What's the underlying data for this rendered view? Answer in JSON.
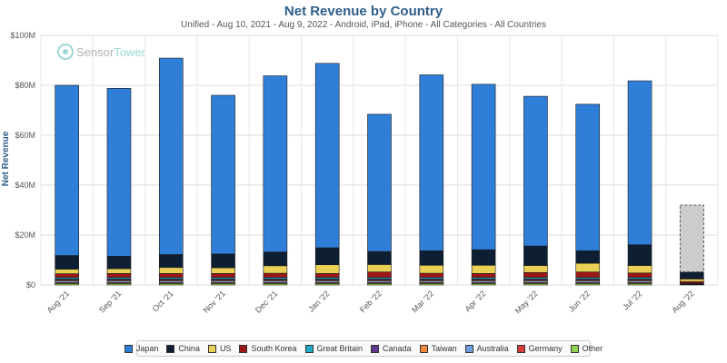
{
  "chart_data": {
    "type": "bar",
    "stacked": true,
    "title": "Net Revenue by Country",
    "subtitle": "Unified - Aug 10, 2021 - Aug 9, 2022 - Android, iPad, iPhone - All Categories - All Countries",
    "ylabel": "Net Revenue",
    "xlabel": "",
    "ylim": [
      0,
      100
    ],
    "yticks": [
      {
        "value": 0,
        "label": "$0"
      },
      {
        "value": 20,
        "label": "$20M"
      },
      {
        "value": 40,
        "label": "$40M"
      },
      {
        "value": 60,
        "label": "$60M"
      },
      {
        "value": 80,
        "label": "$80M"
      },
      {
        "value": 100,
        "label": "$100M"
      }
    ],
    "grid": true,
    "legend_position": "bottom",
    "categories": [
      "Aug '21",
      "Sep '21",
      "Oct '21",
      "Nov '21",
      "Dec '21",
      "Jan '22",
      "Feb '22",
      "Mar '22",
      "Apr '22",
      "May '22",
      "Jun '22",
      "Jul '22",
      "Aug '22"
    ],
    "series": [
      {
        "name": "Other",
        "color": "#8fd14f",
        "values": [
          0.6,
          0.6,
          0.6,
          0.6,
          0.6,
          0.6,
          0.6,
          0.6,
          0.6,
          0.6,
          0.6,
          0.6,
          0.2
        ]
      },
      {
        "name": "Germany",
        "color": "#d63a3a",
        "values": [
          0.4,
          0.4,
          0.4,
          0.4,
          0.4,
          0.4,
          0.4,
          0.4,
          0.4,
          0.4,
          0.4,
          0.4,
          0.1
        ]
      },
      {
        "name": "Australia",
        "color": "#6f9ee0",
        "values": [
          0.6,
          0.6,
          0.6,
          0.6,
          0.6,
          0.6,
          0.6,
          0.6,
          0.6,
          0.6,
          0.6,
          0.6,
          0.1
        ]
      },
      {
        "name": "Taiwan",
        "color": "#f0883a",
        "values": [
          0.4,
          0.4,
          0.4,
          0.4,
          0.4,
          0.4,
          0.4,
          0.4,
          0.4,
          0.4,
          0.4,
          0.4,
          0.1
        ]
      },
      {
        "name": "Canada",
        "color": "#5e3a8c",
        "values": [
          0.4,
          0.4,
          0.4,
          0.4,
          0.4,
          0.4,
          0.4,
          0.4,
          0.4,
          0.4,
          0.4,
          0.4,
          0.1
        ]
      },
      {
        "name": "Great Britain",
        "color": "#1fa9c9",
        "values": [
          0.6,
          0.6,
          0.6,
          0.6,
          0.6,
          0.6,
          0.6,
          0.6,
          0.6,
          0.6,
          0.6,
          0.6,
          0.1
        ]
      },
      {
        "name": "South Korea",
        "color": "#9c1717",
        "values": [
          1.5,
          1.6,
          1.6,
          1.6,
          1.7,
          1.6,
          2.2,
          1.7,
          1.6,
          2.0,
          2.2,
          1.8,
          0.7
        ]
      },
      {
        "name": "US",
        "color": "#ead156",
        "values": [
          1.8,
          1.9,
          2.4,
          2.3,
          3.0,
          3.5,
          3.0,
          3.2,
          3.3,
          2.8,
          3.5,
          3.0,
          1.0
        ]
      },
      {
        "name": "China",
        "color": "#0e1f33",
        "values": [
          5.5,
          5.0,
          5.2,
          5.5,
          5.5,
          6.8,
          5.2,
          5.8,
          6.2,
          7.8,
          5.0,
          8.3,
          2.8
        ]
      },
      {
        "name": "Japan",
        "color": "#2f7ed8",
        "values": [
          68.2,
          67.3,
          78.7,
          63.6,
          70.6,
          73.9,
          55.0,
          70.5,
          66.3,
          60.0,
          58.7,
          65.7,
          0
        ]
      }
    ],
    "partial_period": {
      "category": "Aug '22",
      "projected_total": 32,
      "color": "#cccccc"
    }
  },
  "legend": {
    "items": [
      {
        "label": "Japan",
        "color": "#2f7ed8"
      },
      {
        "label": "China",
        "color": "#0e1f33"
      },
      {
        "label": "US",
        "color": "#ead156"
      },
      {
        "label": "South Korea",
        "color": "#9c1717"
      },
      {
        "label": "Great Britain",
        "color": "#1fa9c9"
      },
      {
        "label": "Canada",
        "color": "#5e3a8c"
      },
      {
        "label": "Taiwan",
        "color": "#f0883a"
      },
      {
        "label": "Australia",
        "color": "#6f9ee0"
      },
      {
        "label": "Germany",
        "color": "#d63a3a"
      },
      {
        "label": "Other",
        "color": "#8fd14f"
      }
    ]
  },
  "watermark": {
    "text_a": "Sensor",
    "text_b": "Tower"
  }
}
